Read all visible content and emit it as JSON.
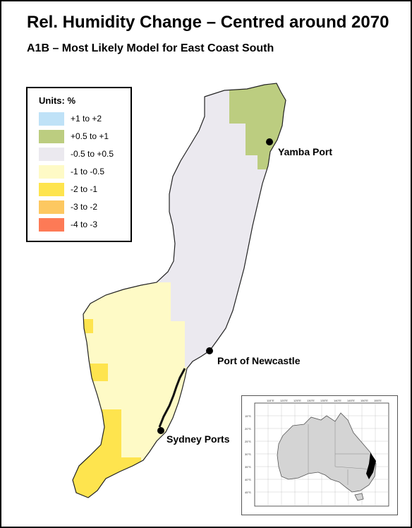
{
  "title": "Rel. Humidity Change – Centred around 2070",
  "subtitle": "A1B – Most Likely Model for East Coast South",
  "legend": {
    "title": "Units: %",
    "items": [
      {
        "label": "+1 to +2",
        "color": "#bfe2f7"
      },
      {
        "label": "+0.5 to +1",
        "color": "#bccd80"
      },
      {
        "label": "-0.5 to +0.5",
        "color": "#ebe9ef"
      },
      {
        "label": "-1 to -0.5",
        "color": "#fefac6"
      },
      {
        "label": "-2 to -1",
        "color": "#fee44e"
      },
      {
        "label": "-3 to -2",
        "color": "#fdc861"
      },
      {
        "label": "-4 to -3",
        "color": "#fd7a56"
      }
    ]
  },
  "ports": [
    {
      "label": "Yamba Port"
    },
    {
      "label": "Port of Newcastle"
    },
    {
      "label": "Sydney Ports"
    }
  ],
  "inset": {
    "lon_labels": [
      "110°E",
      "115°E",
      "120°E",
      "125°E",
      "130°E",
      "135°E",
      "140°E",
      "145°E",
      "150°E",
      "155°E"
    ],
    "lat_labels": [
      "10°S",
      "15°S",
      "20°S",
      "25°S",
      "30°S",
      "35°S",
      "40°S",
      "45°S"
    ]
  }
}
